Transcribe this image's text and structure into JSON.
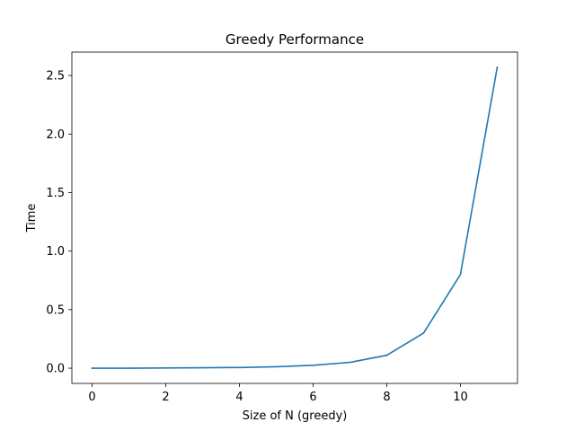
{
  "chart_data": {
    "type": "line",
    "title": "Greedy Performance",
    "xlabel": "Size of N (greedy)",
    "ylabel": "Time",
    "xlim": [
      -0.55,
      11.55
    ],
    "ylim": [
      -0.13,
      2.7
    ],
    "xticks": [
      0,
      2,
      4,
      6,
      8,
      10
    ],
    "yticks": [
      0.0,
      0.5,
      1.0,
      1.5,
      2.0,
      2.5
    ],
    "xtick_labels": [
      "0",
      "2",
      "4",
      "6",
      "8",
      "10"
    ],
    "ytick_labels": [
      "0.0",
      "0.5",
      "1.0",
      "1.5",
      "2.0",
      "2.5"
    ],
    "grid": false,
    "series": [
      {
        "color": "#1f77b4",
        "x": [
          0,
          1,
          2,
          3,
          4,
          5,
          6,
          7,
          8,
          9,
          10,
          11
        ],
        "y": [
          0.0,
          0.0,
          0.002,
          0.004,
          0.006,
          0.012,
          0.025,
          0.05,
          0.11,
          0.3,
          0.8,
          2.57
        ]
      }
    ]
  }
}
